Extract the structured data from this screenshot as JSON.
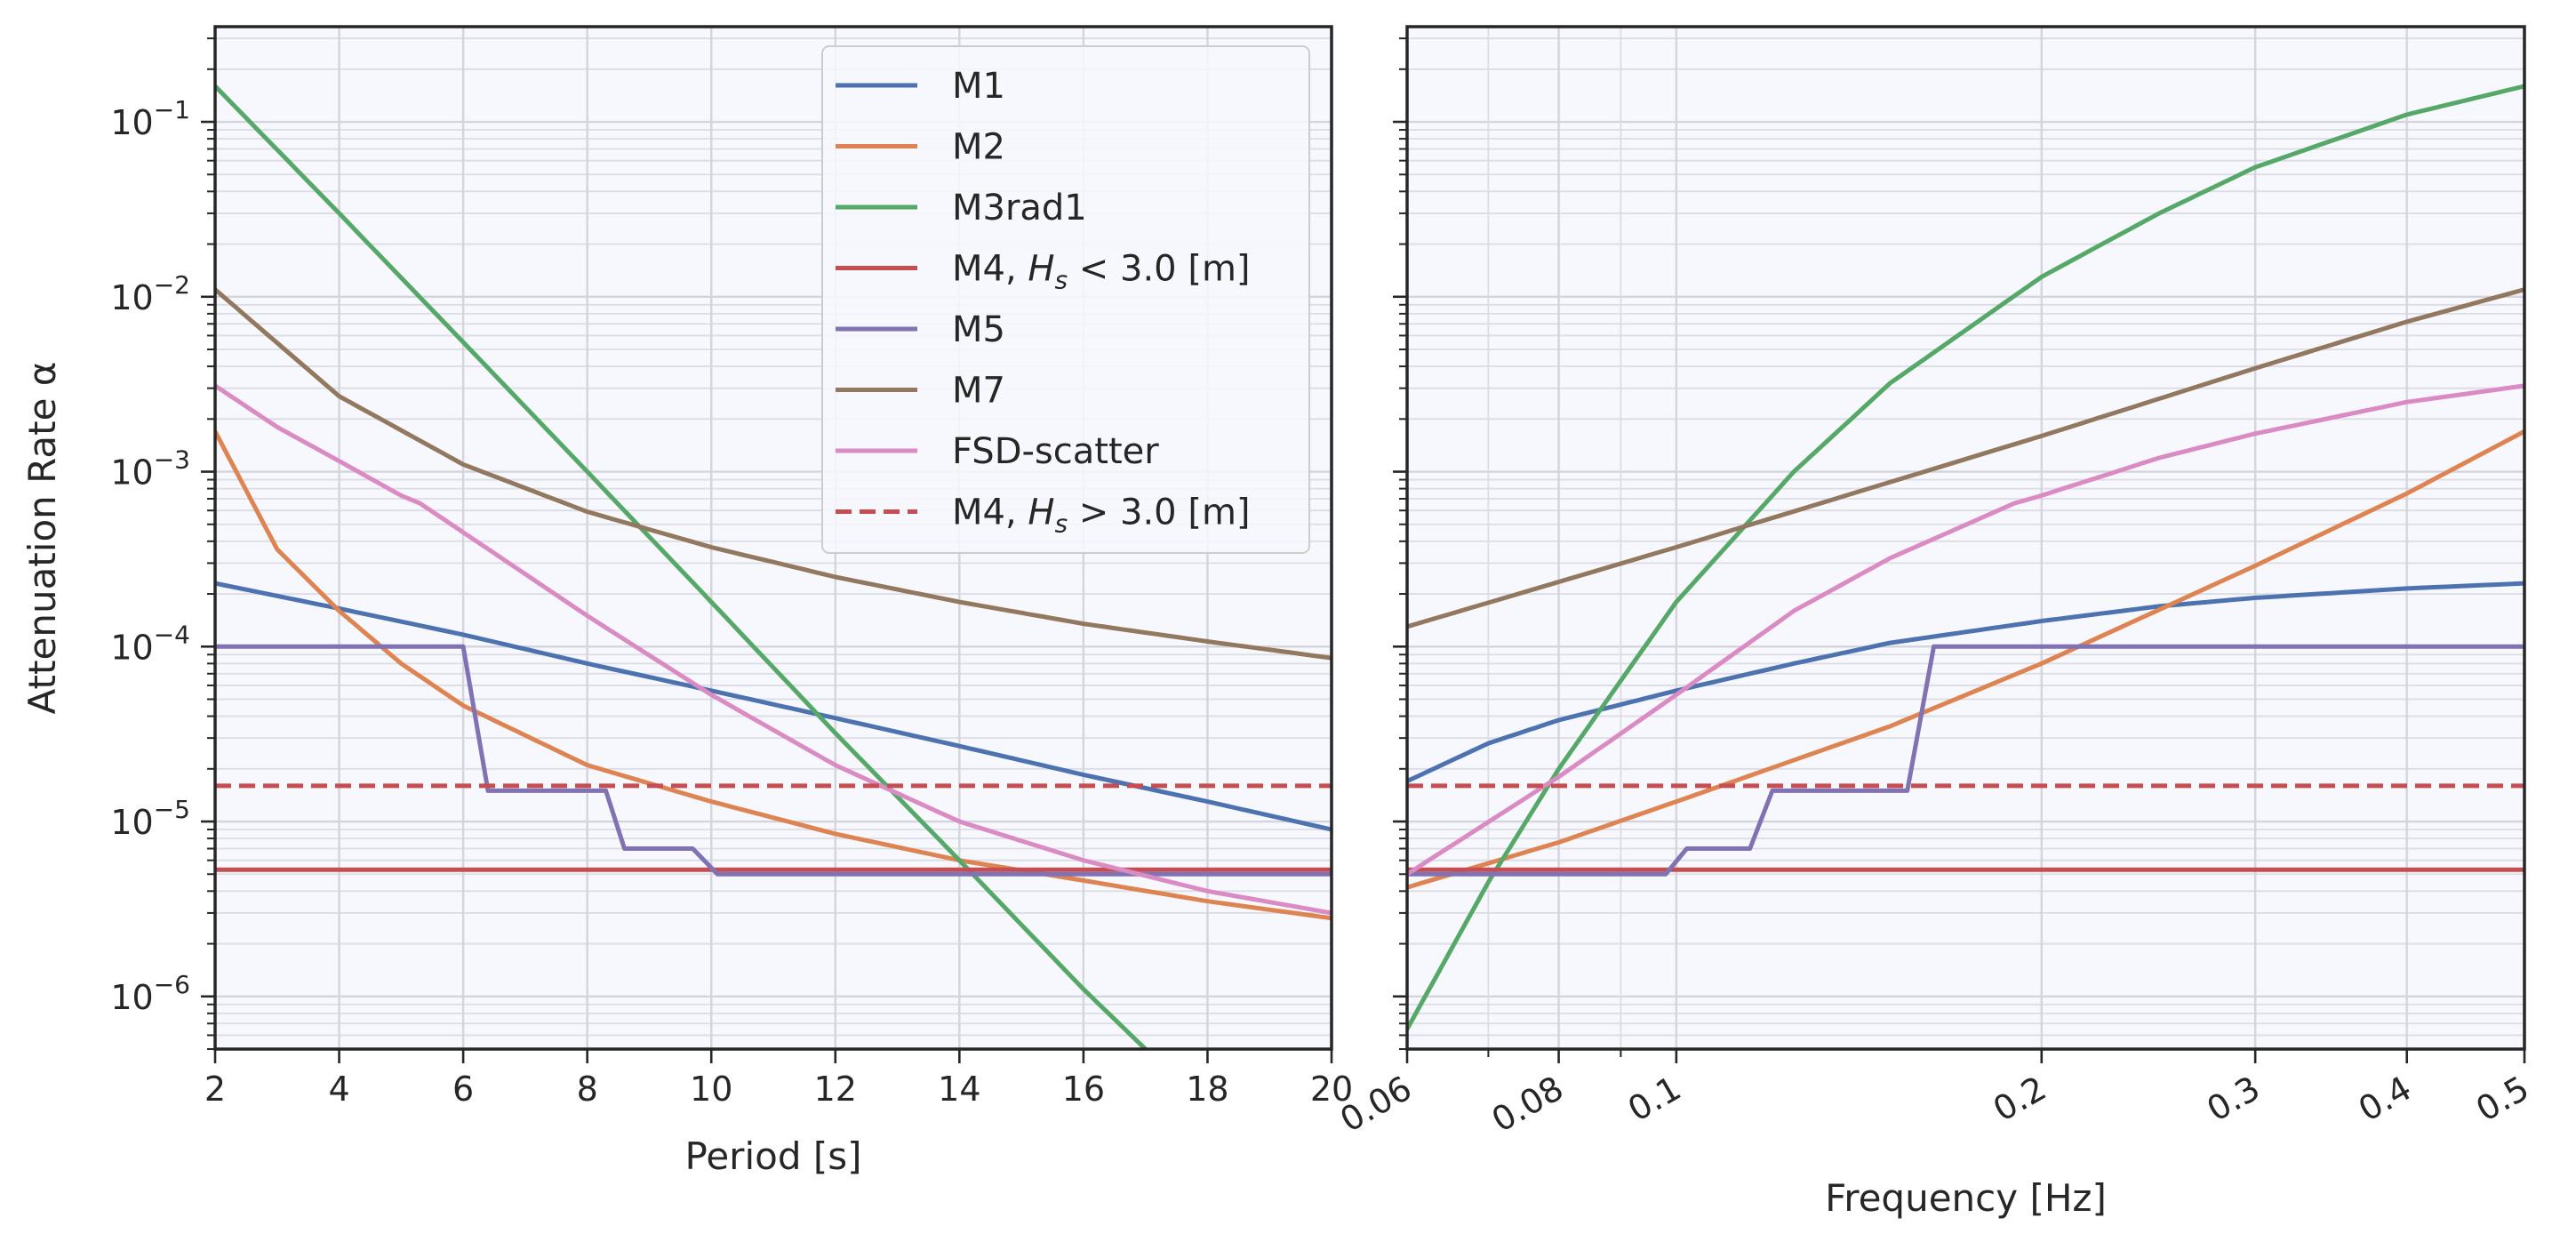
{
  "chart_data": [
    {
      "type": "line",
      "panel": "left",
      "xlabel": "Period [s]",
      "ylabel": "Attenuation Rate α",
      "yscale": "log",
      "xlim": [
        2,
        20
      ],
      "ylim": [
        5e-07,
        0.35
      ],
      "xticks": [
        2,
        4,
        6,
        8,
        10,
        12,
        14,
        16,
        18,
        20
      ],
      "xtick_labels": [
        "2",
        "4",
        "6",
        "8",
        "10",
        "12",
        "14",
        "16",
        "18",
        "20"
      ],
      "yticks": [
        1e-06,
        1e-05,
        0.0001,
        0.001,
        0.01,
        0.1
      ],
      "ytick_labels": [
        {
          "base": "10",
          "exp": "−6"
        },
        {
          "base": "10",
          "exp": "−5"
        },
        {
          "base": "10",
          "exp": "−4"
        },
        {
          "base": "10",
          "exp": "−3"
        },
        {
          "base": "10",
          "exp": "−2"
        },
        {
          "base": "10",
          "exp": "−1"
        }
      ],
      "grid": true,
      "legend_position": "top-right",
      "series": [
        {
          "name": "M1",
          "color": "#4c72b0",
          "style": "solid",
          "x": [
            2,
            4,
            6,
            8,
            10,
            12,
            14,
            16,
            18,
            20
          ],
          "y": [
            0.00023,
            0.000165,
            0.000117,
            8e-05,
            5.6e-05,
            3.9e-05,
            2.7e-05,
            1.85e-05,
            1.3e-05,
            9e-06
          ]
        },
        {
          "name": "M2",
          "color": "#dd8452",
          "style": "solid",
          "x": [
            2,
            3,
            4,
            5,
            6,
            8,
            10,
            12,
            14,
            16,
            18,
            20
          ],
          "y": [
            0.0017,
            0.00036,
            0.00016,
            8e-05,
            4.6e-05,
            2.1e-05,
            1.3e-05,
            8.5e-06,
            6e-06,
            4.6e-06,
            3.5e-06,
            2.8e-06
          ]
        },
        {
          "name": "M3rad1",
          "color": "#55a868",
          "style": "solid",
          "x": [
            2,
            4,
            6,
            8,
            10,
            12,
            14,
            16,
            17
          ],
          "y": [
            0.16,
            0.03,
            0.0055,
            0.001,
            0.00018,
            3.2e-05,
            6e-06,
            1.1e-06,
            5e-07
          ]
        },
        {
          "name": "M4, H_s < 3.0 [m]",
          "name_parts": {
            "prefix": "M4, ",
            "var": "H",
            "sub": "s",
            "suffix": " < 3.0 [m]"
          },
          "color": "#c44e52",
          "style": "solid",
          "x": [
            2,
            20
          ],
          "y": [
            5.3e-06,
            5.3e-06
          ]
        },
        {
          "name": "M5",
          "color": "#8172b3",
          "style": "solid",
          "x": [
            2,
            6,
            6.4,
            8.3,
            8.6,
            9.7,
            10.1,
            20
          ],
          "y": [
            0.0001,
            0.0001,
            1.5e-05,
            1.5e-05,
            7e-06,
            7e-06,
            5e-06,
            5e-06
          ]
        },
        {
          "name": "M7",
          "color": "#937860",
          "style": "solid",
          "x": [
            2,
            4,
            6,
            8,
            10,
            12,
            14,
            16,
            18,
            20
          ],
          "y": [
            0.011,
            0.0027,
            0.0011,
            0.00059,
            0.00037,
            0.00025,
            0.00018,
            0.000135,
            0.000107,
            8.6e-05
          ]
        },
        {
          "name": "FSD-scatter",
          "color": "#da8bc3",
          "style": "solid",
          "x": [
            2,
            3,
            4,
            5,
            5.3,
            6,
            8,
            10,
            12,
            14,
            16,
            18,
            20
          ],
          "y": [
            0.0031,
            0.0018,
            0.00115,
            0.00073,
            0.00066,
            0.00045,
            0.00015,
            5.3e-05,
            2.1e-05,
            1e-05,
            6e-06,
            4e-06,
            3e-06
          ]
        },
        {
          "name": "M4, H_s > 3.0 [m]",
          "name_parts": {
            "prefix": "M4, ",
            "var": "H",
            "sub": "s",
            "suffix": " > 3.0 [m]"
          },
          "color": "#c44e52",
          "style": "dashed",
          "x": [
            2,
            20
          ],
          "y": [
            1.6e-05,
            1.6e-05
          ]
        }
      ]
    },
    {
      "type": "line",
      "panel": "right",
      "xlabel": "Frequency [Hz]",
      "xscale": "log",
      "yscale": "log",
      "xlim": [
        0.06,
        0.5
      ],
      "ylim": [
        5e-07,
        0.35
      ],
      "xticks": [
        0.06,
        0.08,
        0.1,
        0.2,
        0.3,
        0.4,
        0.5
      ],
      "xtick_labels": [
        "0.06",
        "0.08",
        "0.1",
        "0.2",
        "0.3",
        "0.4",
        "0.5"
      ],
      "grid": true,
      "series": [
        {
          "name": "M1",
          "color": "#4c72b0",
          "style": "solid",
          "x": [
            0.06,
            0.07,
            0.08,
            0.1,
            0.125,
            0.15,
            0.2,
            0.25,
            0.3,
            0.4,
            0.5
          ],
          "y": [
            1.7e-05,
            2.8e-05,
            3.8e-05,
            5.6e-05,
            8e-05,
            0.000105,
            0.00014,
            0.00017,
            0.00019,
            0.000215,
            0.00023
          ]
        },
        {
          "name": "M2",
          "color": "#dd8452",
          "style": "solid",
          "x": [
            0.06,
            0.08,
            0.1,
            0.15,
            0.2,
            0.3,
            0.4,
            0.5
          ],
          "y": [
            4.2e-06,
            7.6e-06,
            1.3e-05,
            3.5e-05,
            8e-05,
            0.00029,
            0.00075,
            0.0017
          ]
        },
        {
          "name": "M3rad1",
          "color": "#55a868",
          "style": "solid",
          "x": [
            0.06,
            0.07,
            0.08,
            0.1,
            0.125,
            0.15,
            0.2,
            0.25,
            0.3,
            0.4,
            0.5
          ],
          "y": [
            6.5e-07,
            4.5e-06,
            2e-05,
            0.00018,
            0.001,
            0.0032,
            0.013,
            0.03,
            0.055,
            0.11,
            0.16
          ]
        },
        {
          "name": "M4, H_s < 3.0 [m]",
          "color": "#c44e52",
          "style": "solid",
          "x": [
            0.06,
            0.5
          ],
          "y": [
            5.3e-06,
            5.3e-06
          ]
        },
        {
          "name": "M5",
          "color": "#8172b3",
          "style": "solid",
          "x": [
            0.06,
            0.098,
            0.102,
            0.115,
            0.12,
            0.155,
            0.163,
            0.5
          ],
          "y": [
            5e-06,
            5e-06,
            7e-06,
            7e-06,
            1.5e-05,
            1.5e-05,
            0.0001,
            0.0001
          ]
        },
        {
          "name": "M7",
          "color": "#937860",
          "style": "solid",
          "x": [
            0.06,
            0.1,
            0.2,
            0.3,
            0.4,
            0.5
          ],
          "y": [
            0.00013,
            0.00037,
            0.0016,
            0.0039,
            0.0072,
            0.011
          ]
        },
        {
          "name": "FSD-scatter",
          "color": "#da8bc3",
          "style": "solid",
          "x": [
            0.06,
            0.08,
            0.1,
            0.125,
            0.15,
            0.19,
            0.2,
            0.25,
            0.3,
            0.4,
            0.5
          ],
          "y": [
            5e-06,
            1.8e-05,
            5.3e-05,
            0.00016,
            0.00032,
            0.00066,
            0.00073,
            0.0012,
            0.00165,
            0.0025,
            0.0031
          ]
        },
        {
          "name": "M4, H_s > 3.0 [m]",
          "color": "#c44e52",
          "style": "dashed",
          "x": [
            0.06,
            0.5
          ],
          "y": [
            1.6e-05,
            1.6e-05
          ]
        }
      ]
    }
  ]
}
